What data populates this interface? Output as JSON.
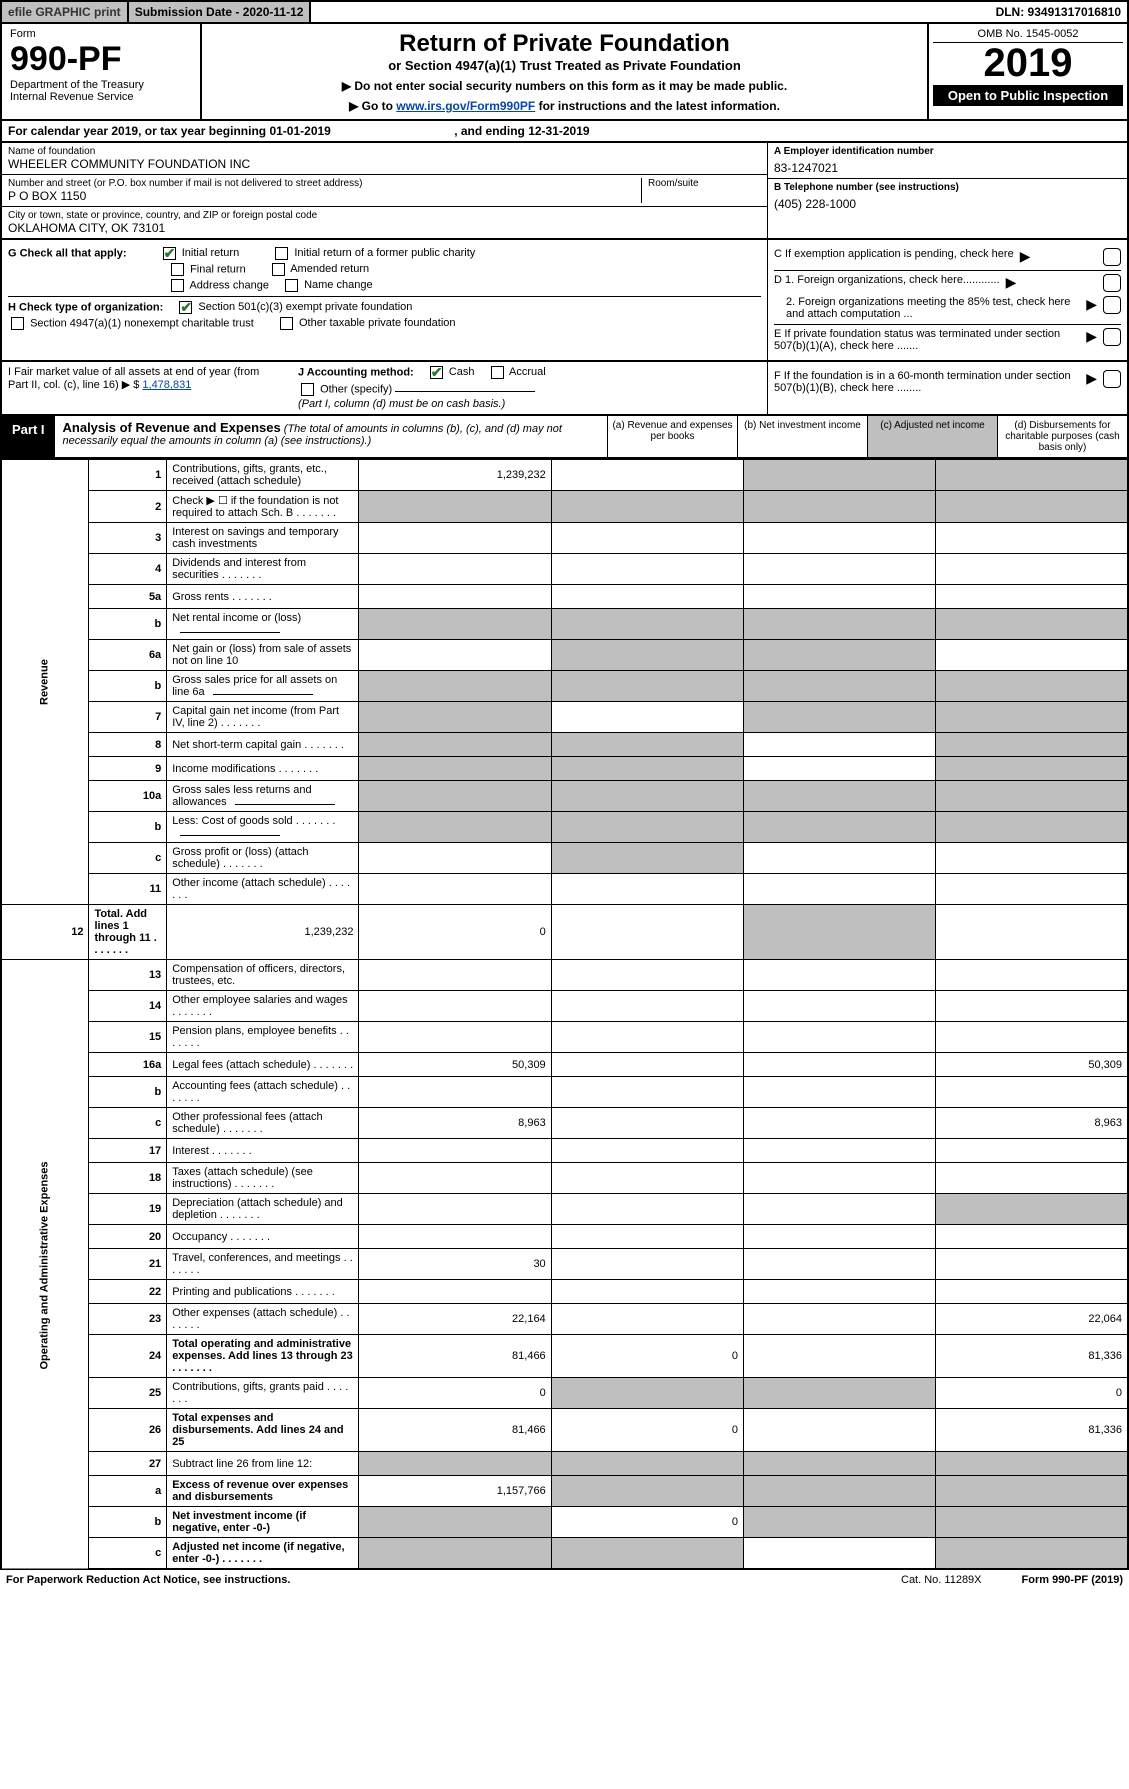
{
  "topbar": {
    "efile": "efile GRAPHIC print",
    "subdate": "Submission Date - 2020-11-12",
    "dln": "DLN: 93491317016810"
  },
  "header": {
    "form_label": "Form",
    "form_no": "990-PF",
    "dept": "Department of the Treasury\nInternal Revenue Service",
    "title": "Return of Private Foundation",
    "subtitle": "or Section 4947(a)(1) Trust Treated as Private Foundation",
    "warn1": "▶ Do not enter social security numbers on this form as it may be made public.",
    "warn2_pre": "▶ Go to ",
    "warn2_link": "www.irs.gov/Form990PF",
    "warn2_post": " for instructions and the latest information.",
    "omb": "OMB No. 1545-0052",
    "year": "2019",
    "open": "Open to Public Inspection"
  },
  "calyear": {
    "pre": "For calendar year 2019, or tax year beginning ",
    "begin": "01-01-2019",
    "mid": " , and ending ",
    "end": "12-31-2019"
  },
  "info": {
    "name_lbl": "Name of foundation",
    "name": "WHEELER COMMUNITY FOUNDATION INC",
    "addr_lbl": "Number and street (or P.O. box number if mail is not delivered to street address)",
    "addr": "P O BOX 1150",
    "room_lbl": "Room/suite",
    "city_lbl": "City or town, state or province, country, and ZIP or foreign postal code",
    "city": "OKLAHOMA CITY, OK  73101",
    "ein_lbl": "A Employer identification number",
    "ein": "83-1247021",
    "tel_lbl": "B Telephone number (see instructions)",
    "tel": "(405) 228-1000",
    "c_lbl": "C If exemption application is pending, check here",
    "d1": "D 1. Foreign organizations, check here............",
    "d2": "2. Foreign organizations meeting the 85% test, check here and attach computation ...",
    "e": "E  If private foundation status was terminated under section 507(b)(1)(A), check here .......",
    "f": "F  If the foundation is in a 60-month termination under section 507(b)(1)(B), check here ........"
  },
  "checks": {
    "g_lbl": "G Check all that apply:",
    "initial": "Initial return",
    "initial_former": "Initial return of a former public charity",
    "final": "Final return",
    "amended": "Amended return",
    "addr_change": "Address change",
    "name_change": "Name change",
    "h_lbl": "H Check type of organization:",
    "h1": "Section 501(c)(3) exempt private foundation",
    "h2": "Section 4947(a)(1) nonexempt charitable trust",
    "h3": "Other taxable private foundation",
    "i_lbl": "I Fair market value of all assets at end of year (from Part II, col. (c), line 16) ▶ $ ",
    "i_val": "1,478,831",
    "j_lbl": "J Accounting method:",
    "cash": "Cash",
    "accrual": "Accrual",
    "other": "Other (specify)",
    "j_note": "(Part I, column (d) must be on cash basis.)"
  },
  "part1": {
    "tag": "Part I",
    "title": "Analysis of Revenue and Expenses",
    "note": " (The total of amounts in columns (b), (c), and (d) may not necessarily equal the amounts in column (a) (see instructions).)",
    "col_a": "(a)   Revenue and expenses per books",
    "col_b": "(b)  Net investment income",
    "col_c": "(c)  Adjusted net income",
    "col_d": "(d)  Disbursements for charitable purposes (cash basis only)"
  },
  "sections": {
    "revenue": "Revenue",
    "expenses": "Operating and Administrative Expenses"
  },
  "rows": [
    {
      "n": "1",
      "d": "Contributions, gifts, grants, etc., received (attach schedule)",
      "a": "1,239,232",
      "grey_bcd": false,
      "grey_c": true,
      "grey_d": true
    },
    {
      "n": "2",
      "d": "Check ▶ ☐ if the foundation is not required to attach Sch. B",
      "grey_all": true,
      "dots": true
    },
    {
      "n": "3",
      "d": "Interest on savings and temporary cash investments"
    },
    {
      "n": "4",
      "d": "Dividends and interest from securities",
      "dots": true
    },
    {
      "n": "5a",
      "d": "Gross rents",
      "dots": true
    },
    {
      "n": "b",
      "d": "Net rental income or (loss)",
      "inline": true,
      "grey_all": true
    },
    {
      "n": "6a",
      "d": "Net gain or (loss) from sale of assets not on line 10",
      "grey_b": true,
      "grey_c": true
    },
    {
      "n": "b",
      "d": "Gross sales price for all assets on line 6a",
      "inline": true,
      "grey_all": true
    },
    {
      "n": "7",
      "d": "Capital gain net income (from Part IV, line 2)",
      "dots": true,
      "grey_a": true,
      "grey_c": true,
      "grey_d": true
    },
    {
      "n": "8",
      "d": "Net short-term capital gain",
      "dots": true,
      "grey_a": true,
      "grey_b": true,
      "grey_d": true
    },
    {
      "n": "9",
      "d": "Income modifications",
      "dots": true,
      "grey_a": true,
      "grey_b": true,
      "grey_d": true
    },
    {
      "n": "10a",
      "d": "Gross sales less returns and allowances",
      "inline": true,
      "grey_all": true
    },
    {
      "n": "b",
      "d": "Less: Cost of goods sold",
      "dots": true,
      "inline": true,
      "grey_all": true
    },
    {
      "n": "c",
      "d": "Gross profit or (loss) (attach schedule)",
      "dots": true,
      "grey_b": true
    },
    {
      "n": "11",
      "d": "Other income (attach schedule)",
      "dots": true
    },
    {
      "n": "12",
      "d": "Total. Add lines 1 through 11",
      "dots": true,
      "bold": true,
      "a": "1,239,232",
      "b": "0",
      "grey_d": true
    }
  ],
  "exp_rows": [
    {
      "n": "13",
      "d": "Compensation of officers, directors, trustees, etc."
    },
    {
      "n": "14",
      "d": "Other employee salaries and wages",
      "dots": true
    },
    {
      "n": "15",
      "d": "Pension plans, employee benefits",
      "dots": true
    },
    {
      "n": "16a",
      "d": "Legal fees (attach schedule)",
      "dots": true,
      "a": "50,309",
      "dd": "50,309"
    },
    {
      "n": "b",
      "d": "Accounting fees (attach schedule)",
      "dots": true
    },
    {
      "n": "c",
      "d": "Other professional fees (attach schedule)",
      "dots": true,
      "a": "8,963",
      "dd": "8,963"
    },
    {
      "n": "17",
      "d": "Interest",
      "dots": true
    },
    {
      "n": "18",
      "d": "Taxes (attach schedule) (see instructions)",
      "dots": true
    },
    {
      "n": "19",
      "d": "Depreciation (attach schedule) and depletion",
      "dots": true,
      "grey_d": true
    },
    {
      "n": "20",
      "d": "Occupancy",
      "dots": true
    },
    {
      "n": "21",
      "d": "Travel, conferences, and meetings",
      "dots": true,
      "a": "30"
    },
    {
      "n": "22",
      "d": "Printing and publications",
      "dots": true
    },
    {
      "n": "23",
      "d": "Other expenses (attach schedule)",
      "dots": true,
      "a": "22,164",
      "dd": "22,064"
    },
    {
      "n": "24",
      "d": "Total operating and administrative expenses. Add lines 13 through 23",
      "dots": true,
      "bold": true,
      "a": "81,466",
      "b": "0",
      "dd": "81,336"
    },
    {
      "n": "25",
      "d": "Contributions, gifts, grants paid",
      "dots": true,
      "a": "0",
      "grey_b": true,
      "grey_c": true,
      "dd": "0"
    },
    {
      "n": "26",
      "d": "Total expenses and disbursements. Add lines 24 and 25",
      "bold": true,
      "a": "81,466",
      "b": "0",
      "dd": "81,336"
    },
    {
      "n": "27",
      "d": "Subtract line 26 from line 12:",
      "grey_all": true
    },
    {
      "n": "a",
      "d": "Excess of revenue over expenses and disbursements",
      "bold": true,
      "a": "1,157,766",
      "grey_b": true,
      "grey_c": true,
      "grey_d": true
    },
    {
      "n": "b",
      "d": "Net investment income (if negative, enter -0-)",
      "bold": true,
      "grey_a": true,
      "b": "0",
      "grey_c": true,
      "grey_d": true
    },
    {
      "n": "c",
      "d": "Adjusted net income (if negative, enter -0-)",
      "bold": true,
      "dots": true,
      "grey_a": true,
      "grey_b": true,
      "grey_d": true
    }
  ],
  "footer": {
    "pra": "For Paperwork Reduction Act Notice, see instructions.",
    "cat": "Cat. No. 11289X",
    "form": "Form 990-PF (2019)"
  }
}
